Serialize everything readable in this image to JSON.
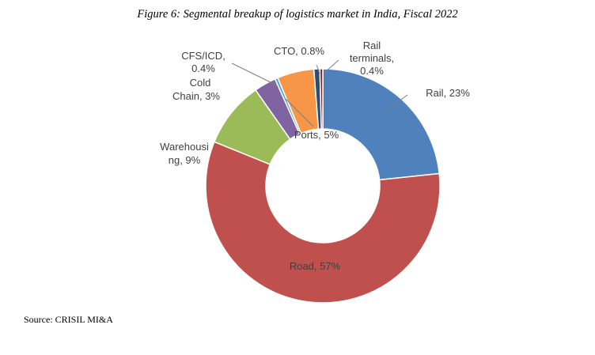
{
  "figure": {
    "title": "Figure 6: Segmental breakup of logistics market in India, Fiscal 2022",
    "source": "Source: CRISIL MI&A"
  },
  "chart_data": {
    "type": "pie",
    "donut": true,
    "title": "Figure 6: Segmental breakup of logistics market in India, Fiscal 2022",
    "legend": "none",
    "slices": [
      {
        "key": "rail",
        "label_lines": [
          "Rail, 23%"
        ],
        "value": 23,
        "color": "#4f81bd"
      },
      {
        "key": "road",
        "label_lines": [
          "Road, 57%"
        ],
        "value": 57,
        "color": "#c0504d"
      },
      {
        "key": "warehousing",
        "label_lines": [
          "Warehousi",
          "ng, 9%"
        ],
        "value": 9,
        "color": "#9bbb59"
      },
      {
        "key": "cold-chain",
        "label_lines": [
          "Cold",
          "Chain, 3%"
        ],
        "value": 3,
        "color": "#8064a2"
      },
      {
        "key": "cfs-icd",
        "label_lines": [
          "CFS/ICD,",
          "0.4%"
        ],
        "value": 0.4,
        "color": "#4bacc6"
      },
      {
        "key": "ports",
        "label_lines": [
          "Ports, 5%"
        ],
        "value": 5,
        "color": "#f79646"
      },
      {
        "key": "cto",
        "label_lines": [
          "CTO, 0.8%"
        ],
        "value": 0.8,
        "color": "#2c4d75"
      },
      {
        "key": "rail-terminals",
        "label_lines": [
          "Rail",
          "terminals,",
          "0.4%"
        ],
        "value": 0.4,
        "color": "#772c2a"
      }
    ]
  }
}
